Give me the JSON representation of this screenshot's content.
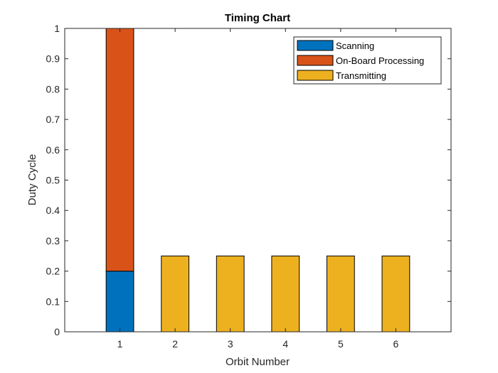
{
  "chart_data": {
    "type": "bar",
    "stacked": true,
    "title": "Timing Chart",
    "xlabel": "Orbit Number",
    "ylabel": "Duty Cycle",
    "categories": [
      "1",
      "2",
      "3",
      "4",
      "5",
      "6"
    ],
    "x_ticks": [
      "1",
      "2",
      "3",
      "4",
      "5",
      "6"
    ],
    "xlim": [
      0,
      7
    ],
    "ylim": [
      0,
      1
    ],
    "y_ticks": [
      "0",
      "0.1",
      "0.2",
      "0.3",
      "0.4",
      "0.5",
      "0.6",
      "0.7",
      "0.8",
      "0.9",
      "1"
    ],
    "series": [
      {
        "name": "Scanning",
        "color": "#0072bd",
        "values": [
          0.2,
          0,
          0,
          0,
          0,
          0
        ]
      },
      {
        "name": "On-Board Processing",
        "color": "#d95319",
        "values": [
          0.8,
          0,
          0,
          0,
          0,
          0
        ]
      },
      {
        "name": "Transmitting",
        "color": "#edb120",
        "values": [
          0,
          0.25,
          0.25,
          0.25,
          0.25,
          0.25
        ]
      }
    ],
    "grid": false,
    "legend_position": "top-right"
  }
}
